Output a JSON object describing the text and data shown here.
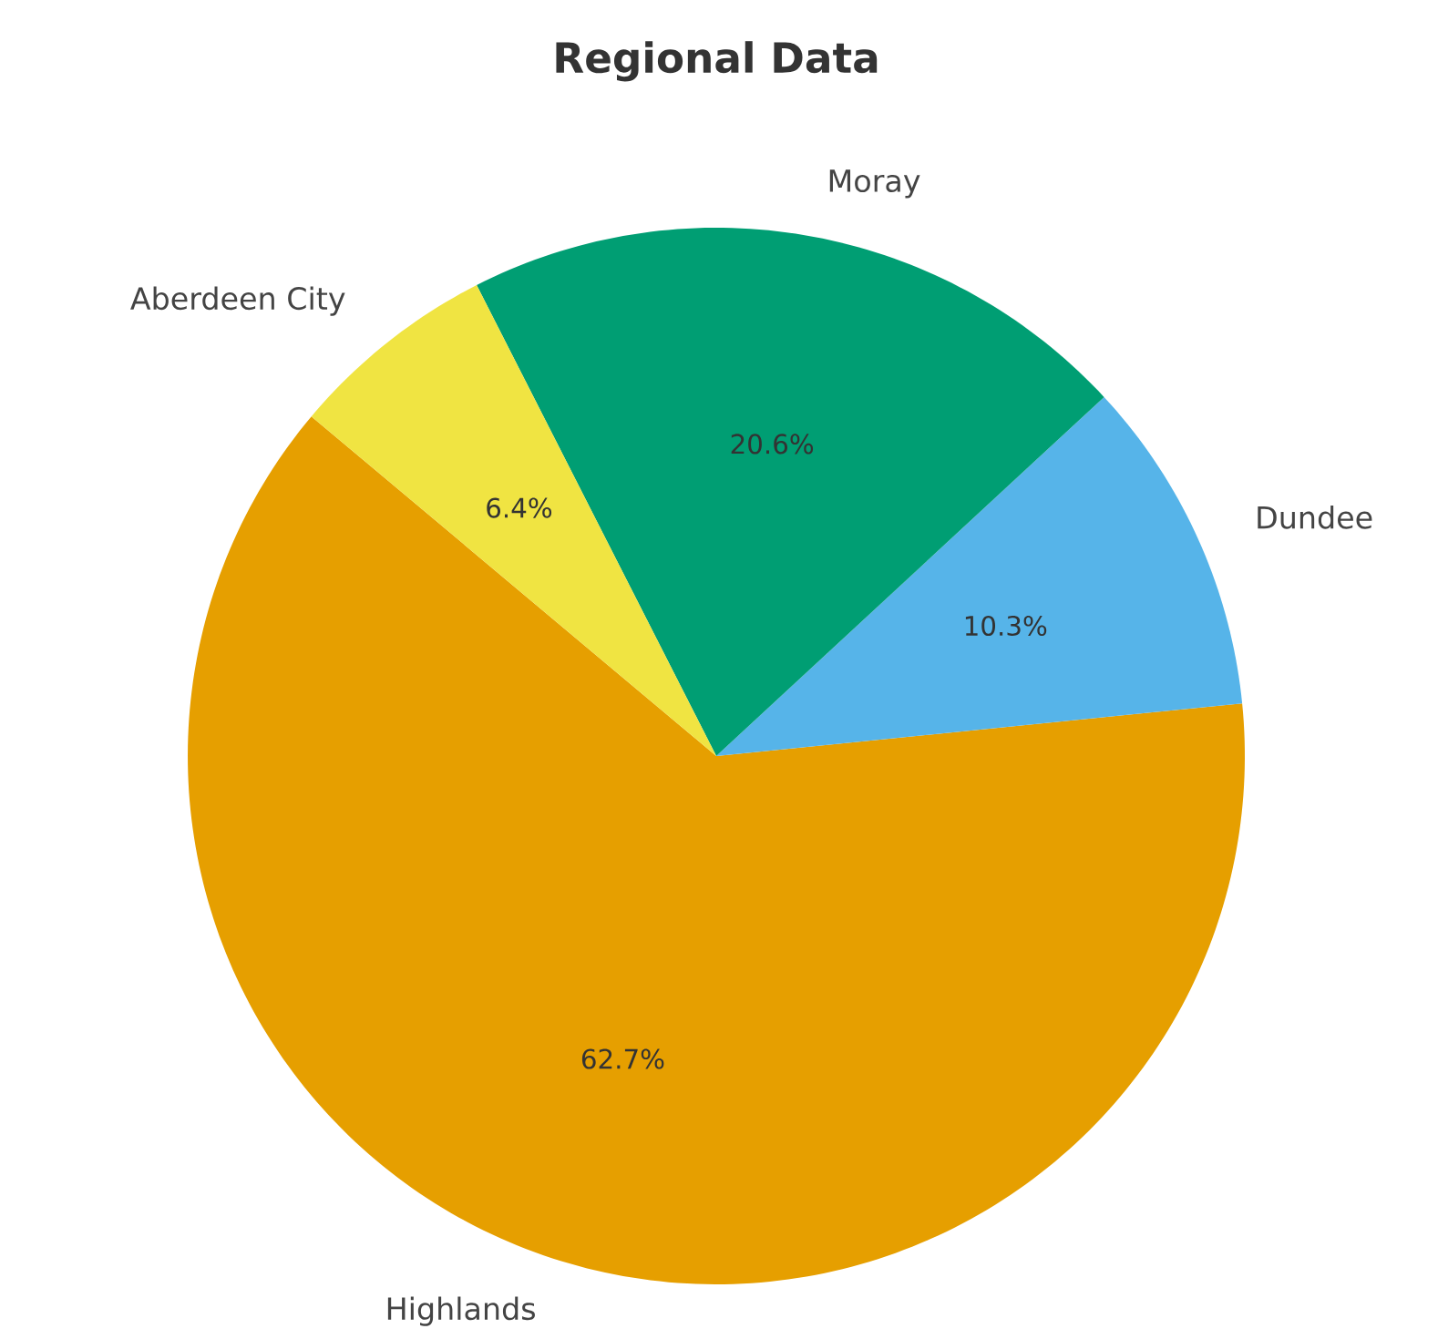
{
  "chart_data": {
    "type": "pie",
    "title": "Regional Data",
    "categories": [
      "Highlands",
      "Dundee",
      "Moray",
      "Aberdeen City"
    ],
    "values": [
      62.7,
      10.3,
      20.6,
      6.4
    ],
    "colors": [
      "#e69f00",
      "#56b4e9",
      "#009e73",
      "#f0e442"
    ],
    "value_labels": [
      "62.7%",
      "10.3%",
      "20.6%",
      "6.4%"
    ]
  }
}
